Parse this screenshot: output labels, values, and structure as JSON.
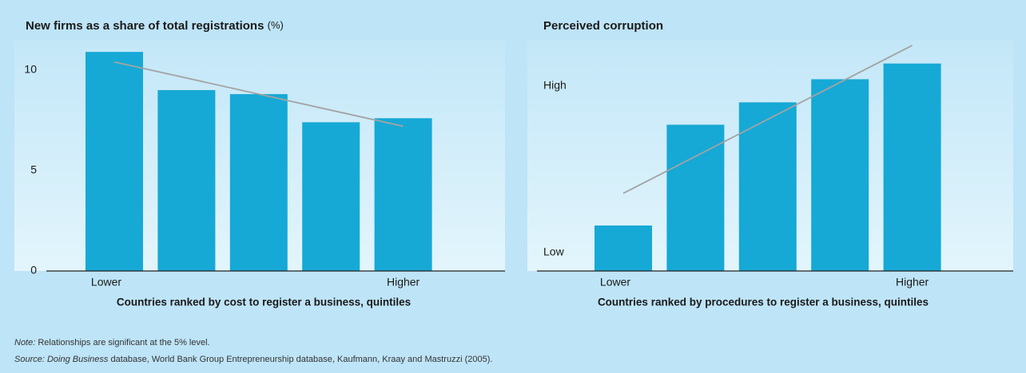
{
  "chart_data": [
    {
      "type": "bar",
      "title": "New firms as a share of total registrations",
      "title_unit": "(%)",
      "x_label": "Countries ranked by cost to register a business, quintiles",
      "categories": [
        "Lower",
        null,
        null,
        null,
        "Higher"
      ],
      "values": [
        10.9,
        9.0,
        8.8,
        7.4,
        7.6
      ],
      "trend": [
        10.4,
        7.2
      ],
      "color": "#16a9d6",
      "trend_color": "#a3a3a3",
      "ylim": [
        0,
        11.5
      ],
      "yticks": [
        0,
        5,
        10
      ]
    },
    {
      "type": "bar",
      "title": "Perceived corruption",
      "x_label": "Countries ranked by procedures to register a business, quintiles",
      "categories": [
        "Lower",
        null,
        null,
        null,
        "Higher"
      ],
      "values": [
        24.6,
        79.1,
        91.2,
        103.7,
        112.2
      ],
      "trend": [
        42,
        122
      ],
      "color": "#16a9d6",
      "trend_color": "#a3a3a3",
      "ylim": [
        0,
        125
      ],
      "yticks": [
        {
          "value": 10,
          "label": "Low"
        },
        {
          "value": 100,
          "label": "High"
        }
      ]
    }
  ],
  "notes": {
    "note_label": "Note:",
    "note": "Relationships are significant at the 5% level.",
    "source_label": "Source:",
    "source_title": "Doing Business",
    "source": "database, World Bank Group Entrepreneurship database, Kaufmann, Kraay and Mastruzzi (2005)."
  }
}
